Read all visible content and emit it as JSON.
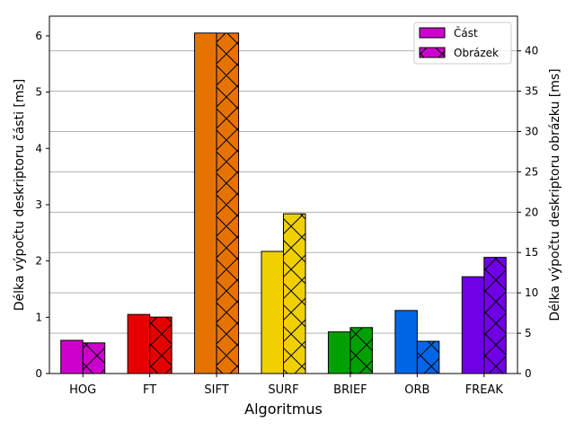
{
  "chart_data": {
    "type": "bar",
    "xlabel": "Algoritmus",
    "ylabel_left": "Délka výpočtu deskriptoru části [ms]",
    "ylabel_right": "Délka výpočtu deskriptoru obrázku [ms]",
    "categories": [
      "HOG",
      "FT",
      "SIFT",
      "SURF",
      "BRIEF",
      "ORB",
      "FREAK"
    ],
    "colors": [
      "#cc00cc",
      "#e60000",
      "#e67300",
      "#f0d000",
      "#00a000",
      "#0066e6",
      "#7000e6"
    ],
    "series": [
      {
        "name": "Část",
        "axis": "left",
        "hatch": "none",
        "values": [
          0.59,
          1.05,
          6.05,
          2.17,
          0.74,
          1.12,
          1.72
        ]
      },
      {
        "name": "Obrázek",
        "axis": "right",
        "hatch": "cross",
        "values": [
          3.8,
          7.0,
          42.2,
          19.8,
          5.7,
          4.0,
          14.4
        ]
      }
    ],
    "ylim_left": [
      0,
      6.35
    ],
    "ylim_right": [
      0,
      44.3
    ],
    "yticks_left": [
      "0",
      "1",
      "2",
      "3",
      "4",
      "5",
      "6"
    ],
    "yticks_right": [
      "0",
      "5",
      "10",
      "15",
      "20",
      "25",
      "30",
      "35",
      "40"
    ],
    "grid": "horizontal-right-axis",
    "legend": "top-right",
    "legend_fill": "#cc00cc"
  }
}
